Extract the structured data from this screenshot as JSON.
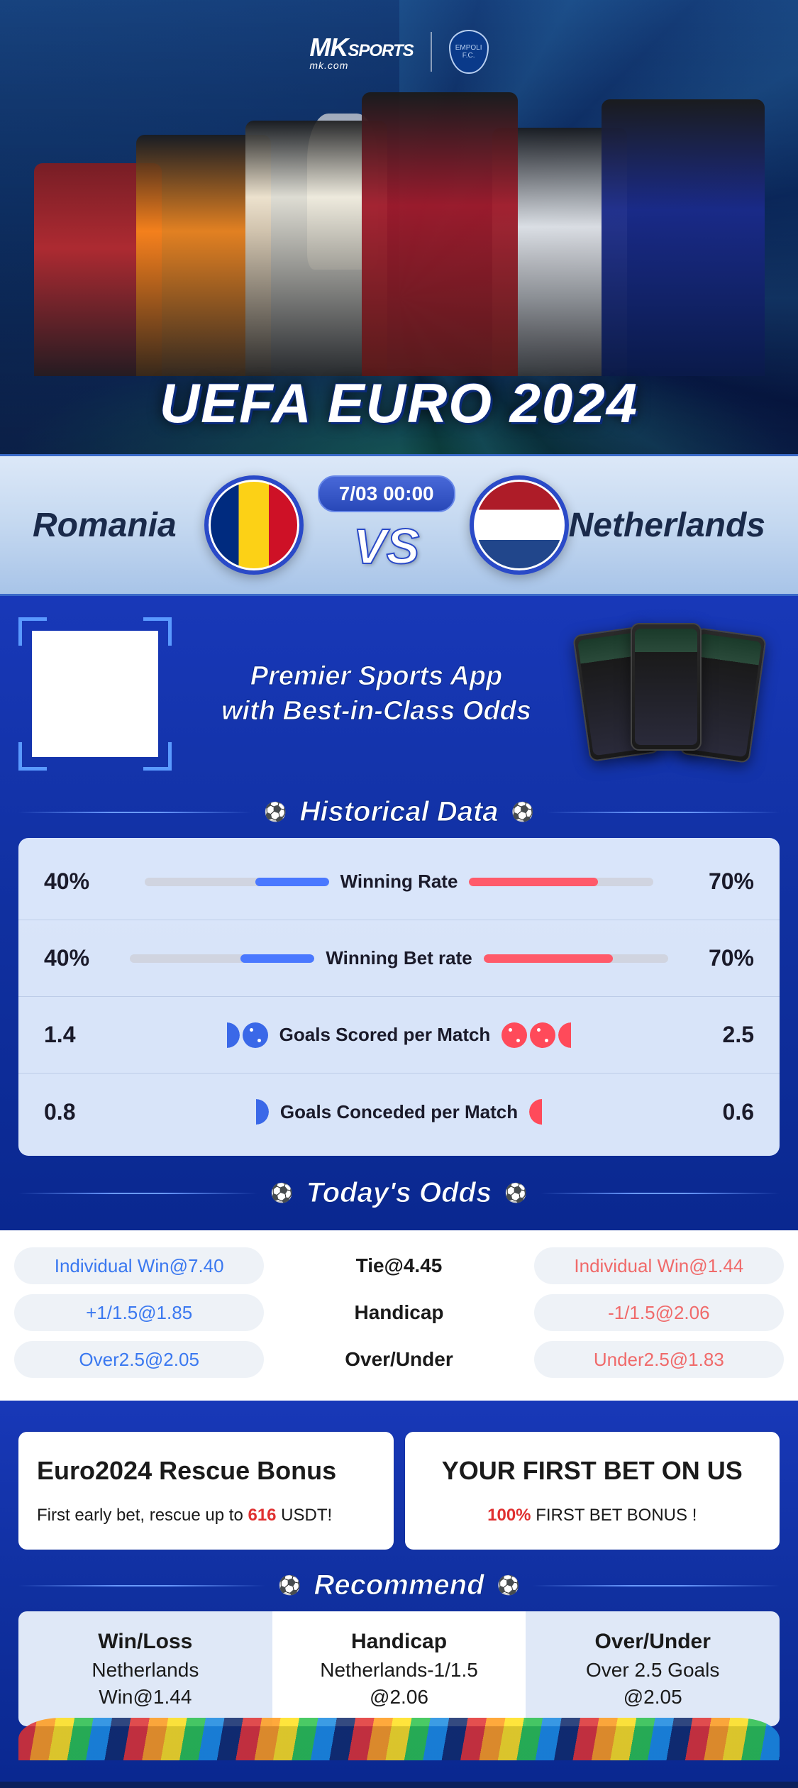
{
  "logo": {
    "brand": "MK",
    "brand_suffix": "SPORTS",
    "site": "mk.com",
    "club": "EMPOLI F.C."
  },
  "hero": {
    "title": "UEFA EURO 2024"
  },
  "match": {
    "team_left": "Romania",
    "team_right": "Netherlands",
    "datetime": "7/03 00:00",
    "vs": "VS",
    "flag_left_colors": [
      "#002b7f",
      "#fcd116",
      "#ce1126"
    ],
    "flag_right_colors": [
      "#ae1c28",
      "#ffffff",
      "#21468b"
    ]
  },
  "promo": {
    "line1": "Premier Sports App",
    "line2": "with Best-in-Class Odds"
  },
  "historical": {
    "title": "Historical Data",
    "colors": {
      "left_bar": "#4a78ff",
      "right_bar": "#ff5a6a",
      "track": "#d0d4e0"
    },
    "rows": [
      {
        "type": "bar",
        "label": "Winning Rate",
        "left_value": "40%",
        "left_pct": 40,
        "right_value": "70%",
        "right_pct": 70
      },
      {
        "type": "bar",
        "label": "Winning Bet rate",
        "left_value": "40%",
        "left_pct": 40,
        "right_value": "70%",
        "right_pct": 70
      },
      {
        "type": "balls",
        "label": "Goals Scored per Match",
        "left_value": "1.4",
        "left_balls": 1.4,
        "right_value": "2.5",
        "right_balls": 2.5
      },
      {
        "type": "balls",
        "label": "Goals Conceded per Match",
        "left_value": "0.8",
        "left_balls": 0.8,
        "right_value": "0.6",
        "right_balls": 0.6
      }
    ]
  },
  "odds": {
    "title": "Today's Odds",
    "colors": {
      "left": "#3a78f0",
      "right": "#f06a6a",
      "pill_bg": "#eef2f7"
    },
    "rows": [
      {
        "left": "Individual Win@7.40",
        "mid": "Tie@4.45",
        "right": "Individual Win@1.44"
      },
      {
        "left": "+1/1.5@1.85",
        "mid": "Handicap",
        "right": "-1/1.5@2.06"
      },
      {
        "left": "Over2.5@2.05",
        "mid": "Over/Under",
        "right": "Under2.5@1.83"
      }
    ]
  },
  "bonuses": [
    {
      "title": "Euro2024 Rescue Bonus",
      "sub_pre": "First early bet, rescue up to ",
      "sub_hl": "616",
      "sub_post": " USDT!"
    },
    {
      "title": "YOUR FIRST BET ON US",
      "sub_pre": "",
      "sub_hl": "100%",
      "sub_post": " FIRST BET BONUS !"
    }
  ],
  "recommend": {
    "title": "Recommend",
    "cols": [
      {
        "head": "Win/Loss",
        "line1": "Netherlands",
        "line2": "Win@1.44"
      },
      {
        "head": "Handicap",
        "line1": "Netherlands-1/1.5",
        "line2": "@2.06"
      },
      {
        "head": "Over/Under",
        "line1": "Over 2.5 Goals",
        "line2": "@2.05"
      }
    ]
  }
}
